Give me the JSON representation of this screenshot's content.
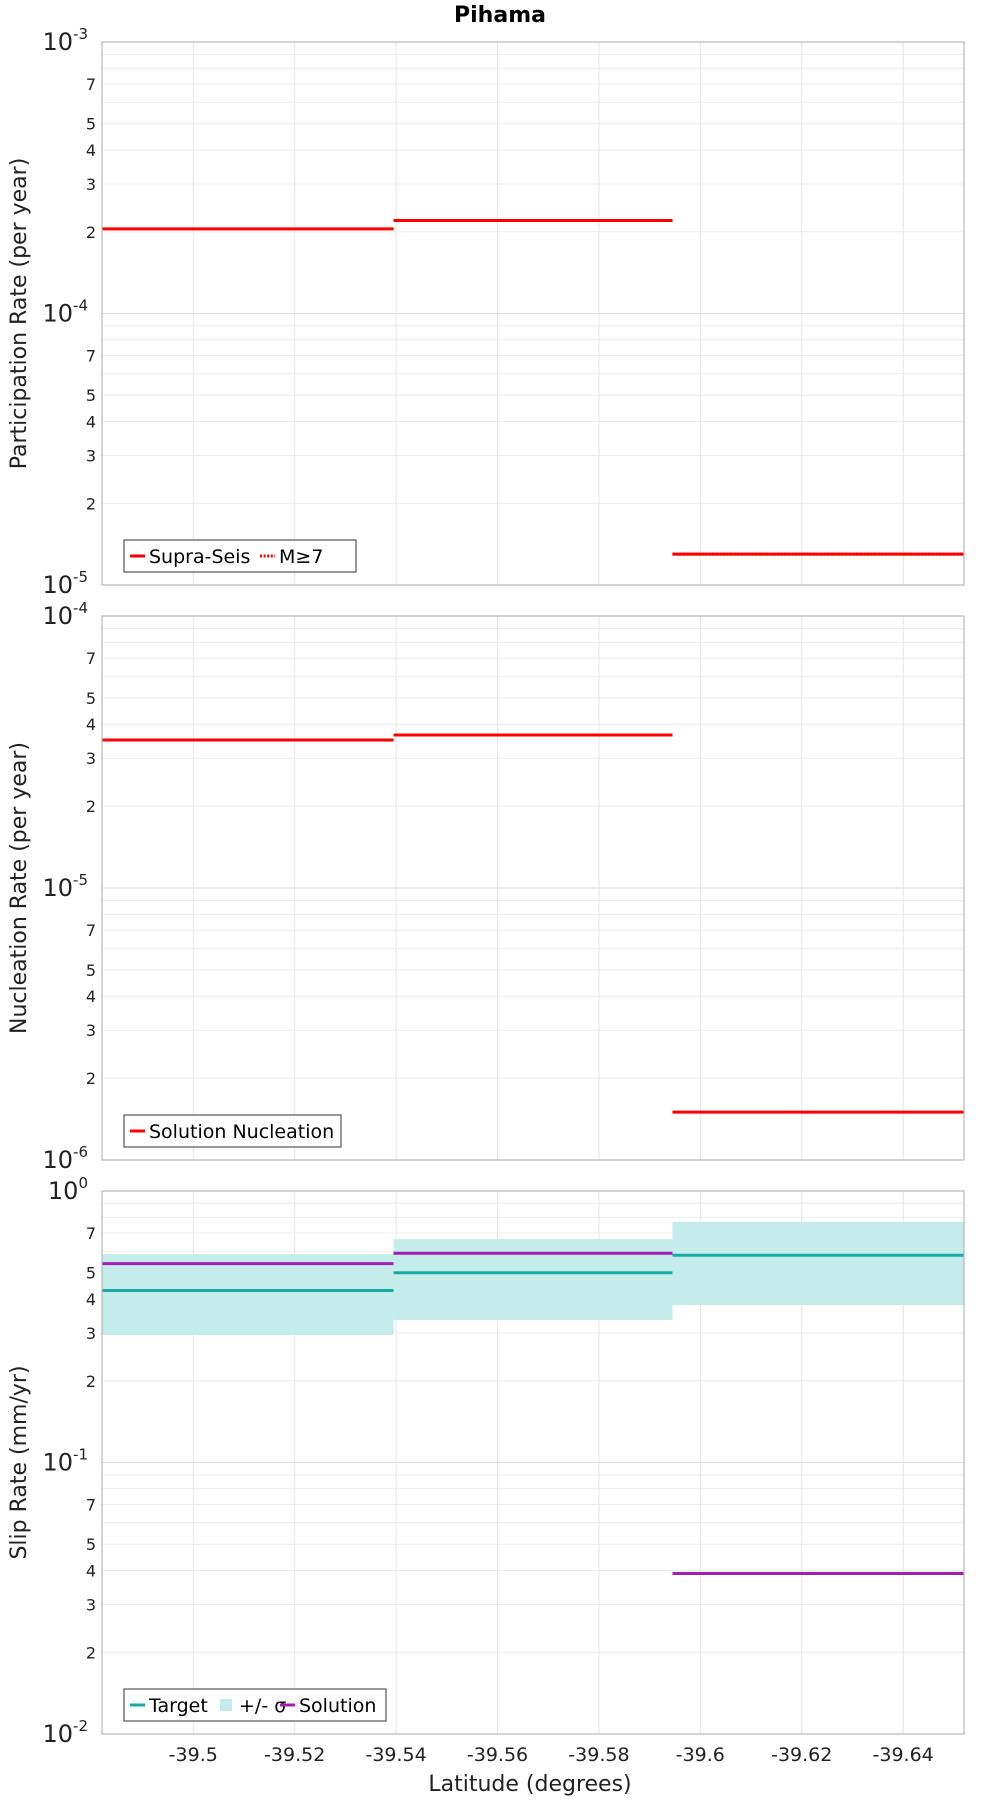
{
  "title": "Pihama",
  "xlabel": "Latitude (degrees)",
  "x_ticks": [
    "-39.5",
    "-39.52",
    "-39.54",
    "-39.56",
    "-39.58",
    "-39.6",
    "-39.62",
    "-39.64"
  ],
  "chart_data": [
    {
      "type": "line",
      "ylabel": "Participation Rate (per year)",
      "yscale": "log",
      "ylim": [
        1e-05,
        0.001
      ],
      "xlim": [
        -39.482,
        -39.652
      ],
      "grid": true,
      "legend_position": "bottom-left",
      "series": [
        {
          "name": "Supra-Seis",
          "style": "solid",
          "color": "#ff0000",
          "segments": [
            {
              "x": [
                -39.482,
                -39.5395
              ],
              "y": 0.000205
            },
            {
              "x": [
                -39.5395,
                -39.5945
              ],
              "y": 0.00022
            },
            {
              "x": [
                -39.5945,
                -39.652
              ],
              "y": 1.3e-05
            }
          ]
        },
        {
          "name": "M≥7",
          "style": "dotted",
          "color": "#ff0000",
          "segments": [
            {
              "x": [
                -39.5395,
                -39.5945
              ],
              "y": 0.00022
            },
            {
              "x": [
                -39.5945,
                -39.652
              ],
              "y": 1.3e-05
            }
          ]
        }
      ]
    },
    {
      "type": "line",
      "ylabel": "Nucleation Rate (per year)",
      "yscale": "log",
      "ylim": [
        1e-06,
        0.0001
      ],
      "xlim": [
        -39.482,
        -39.652
      ],
      "grid": true,
      "legend_position": "bottom-left",
      "series": [
        {
          "name": "Solution Nucleation",
          "style": "solid",
          "color": "#ff0000",
          "segments": [
            {
              "x": [
                -39.482,
                -39.5395
              ],
              "y": 3.5e-05
            },
            {
              "x": [
                -39.5395,
                -39.5945
              ],
              "y": 3.65e-05
            },
            {
              "x": [
                -39.5945,
                -39.652
              ],
              "y": 1.5e-06
            }
          ]
        }
      ]
    },
    {
      "type": "line",
      "ylabel": "Slip Rate (mm/yr)",
      "yscale": "log",
      "ylim": [
        0.01,
        1
      ],
      "xlim": [
        -39.482,
        -39.652
      ],
      "grid": true,
      "legend_position": "bottom-left",
      "bands": [
        {
          "name": "+/- σ",
          "color": "#c4ecea",
          "segments": [
            {
              "x": [
                -39.482,
                -39.5395
              ],
              "y_low": 0.295,
              "y_high": 0.585
            },
            {
              "x": [
                -39.5395,
                -39.5945
              ],
              "y_low": 0.335,
              "y_high": 0.665
            },
            {
              "x": [
                -39.5945,
                -39.652
              ],
              "y_low": 0.38,
              "y_high": 0.77
            }
          ]
        }
      ],
      "series": [
        {
          "name": "Target",
          "style": "solid",
          "color": "#1aa9a4",
          "segments": [
            {
              "x": [
                -39.482,
                -39.5395
              ],
              "y": 0.43
            },
            {
              "x": [
                -39.5395,
                -39.5945
              ],
              "y": 0.5
            },
            {
              "x": [
                -39.5945,
                -39.652
              ],
              "y": 0.58
            }
          ]
        },
        {
          "name": "Solution",
          "style": "solid",
          "color": "#a31db3",
          "segments": [
            {
              "x": [
                -39.482,
                -39.5395
              ],
              "y": 0.54
            },
            {
              "x": [
                -39.5395,
                -39.5945
              ],
              "y": 0.59
            },
            {
              "x": [
                -39.5945,
                -39.652
              ],
              "y": 0.039
            }
          ]
        }
      ]
    }
  ]
}
